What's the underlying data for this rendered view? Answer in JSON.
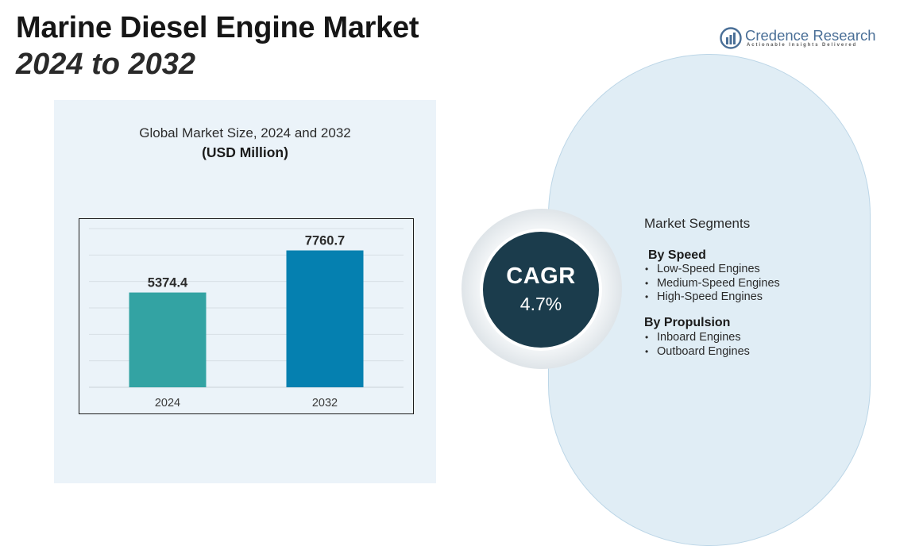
{
  "header": {
    "title_line1": "Marine Diesel Engine Market",
    "title_line2": "2024 to 2032"
  },
  "logo": {
    "name": "Credence Research",
    "tagline": "Actionable Insights Delivered",
    "color": "#4a6f97"
  },
  "chart_data": {
    "type": "bar",
    "title": "Global Market Size, 2024 and 2032",
    "unit": "(USD Million)",
    "categories": [
      "2024",
      "2032"
    ],
    "values": [
      5374.4,
      7760.7
    ],
    "data_labels": [
      "5374.4",
      "7760.7"
    ],
    "colors": [
      "#33a3a3",
      "#0580b0"
    ],
    "ylim": [
      0,
      9000
    ],
    "grid": true,
    "legend": "none"
  },
  "cagr": {
    "label": "CAGR",
    "value": "4.7%",
    "color": "#1b3c4c"
  },
  "segments": {
    "title": "Market Segments",
    "groups": [
      {
        "heading": "By Speed",
        "items": [
          "Low-Speed Engines",
          "Medium-Speed Engines",
          "High-Speed Engines"
        ]
      },
      {
        "heading": "By Propulsion",
        "items": [
          "Inboard Engines",
          "Outboard Engines"
        ]
      }
    ]
  }
}
